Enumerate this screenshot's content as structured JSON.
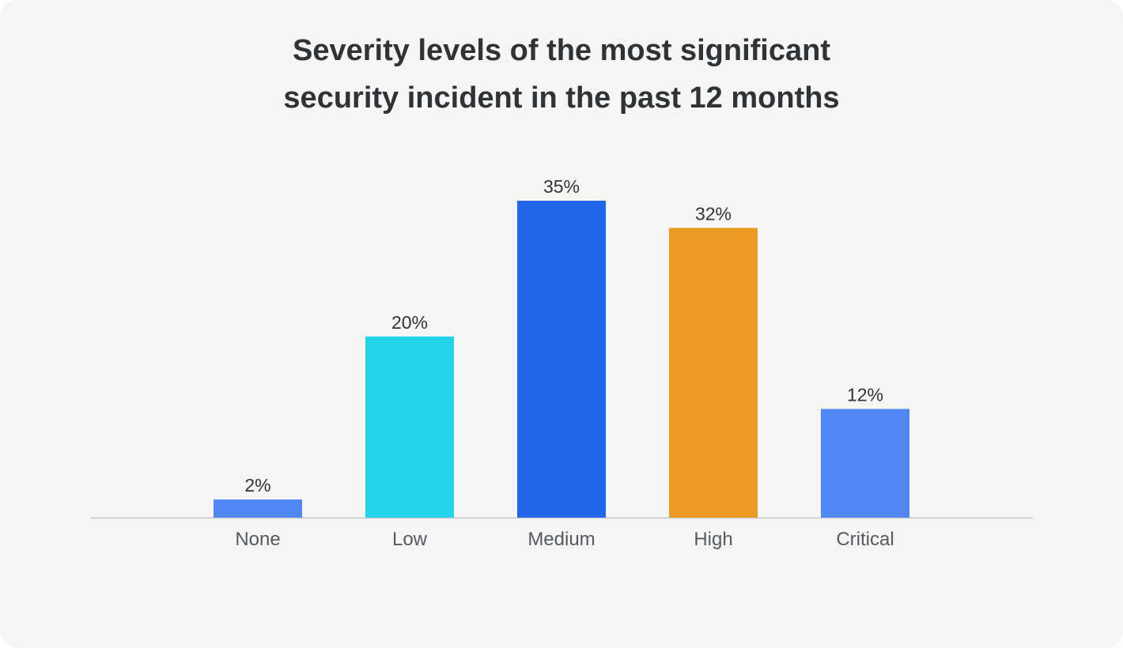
{
  "chart_data": {
    "type": "bar",
    "title": [
      "Severity levels of the most significant",
      "security incident in the past 12 months"
    ],
    "categories": [
      "None",
      "Low",
      "Medium",
      "High",
      "Critical"
    ],
    "values": [
      2,
      20,
      35,
      32,
      12
    ],
    "value_labels": [
      "2%",
      "20%",
      "35%",
      "32%",
      "12%"
    ],
    "colors": [
      "#4f87f5",
      "#22d3ea",
      "#2266ea",
      "#eb9a23",
      "#4f87f5"
    ]
  }
}
